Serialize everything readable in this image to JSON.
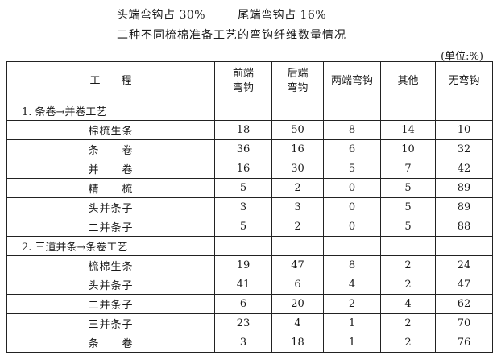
{
  "intro_line": [
    "头端弯钩占 30%",
    "尾端弯钩占 16%"
  ],
  "table_title": "二种不同梳棉准备工艺的弯钩纤维数量情况",
  "unit": "(单位:%)",
  "table": {
    "headers": [
      "工　　程",
      "前端\n弯钩",
      "后端\n弯钩",
      "两端弯钩",
      "其他",
      "无弯钩"
    ],
    "sections": [
      {
        "label": "1. 条卷→并卷工艺",
        "rows": [
          {
            "name": "棉梳生条",
            "values": [
              "18",
              "50",
              "8",
              "14",
              "10"
            ]
          },
          {
            "name": "条　　卷",
            "values": [
              "36",
              "16",
              "6",
              "10",
              "32"
            ]
          },
          {
            "name": "并　　卷",
            "values": [
              "16",
              "30",
              "5",
              "7",
              "42"
            ]
          },
          {
            "name": "精　　梳",
            "values": [
              "5",
              "2",
              "0",
              "5",
              "89"
            ]
          },
          {
            "name": "头并条子",
            "values": [
              "3",
              "3",
              "0",
              "5",
              "89"
            ]
          },
          {
            "name": "二并条子",
            "values": [
              "5",
              "2",
              "0",
              "5",
              "88"
            ]
          }
        ]
      },
      {
        "label": "2. 三道并条→条卷工艺",
        "rows": [
          {
            "name": "梳棉生条",
            "values": [
              "19",
              "47",
              "8",
              "2",
              "24"
            ]
          },
          {
            "name": "头并条子",
            "values": [
              "41",
              "6",
              "4",
              "2",
              "47"
            ]
          },
          {
            "name": "二并条子",
            "values": [
              "6",
              "20",
              "2",
              "4",
              "62"
            ]
          },
          {
            "name": "三并条子",
            "values": [
              "23",
              "4",
              "1",
              "2",
              "70"
            ]
          },
          {
            "name": "条　　卷",
            "values": [
              "3",
              "18",
              "1",
              "2",
              "76"
            ]
          }
        ]
      }
    ]
  }
}
